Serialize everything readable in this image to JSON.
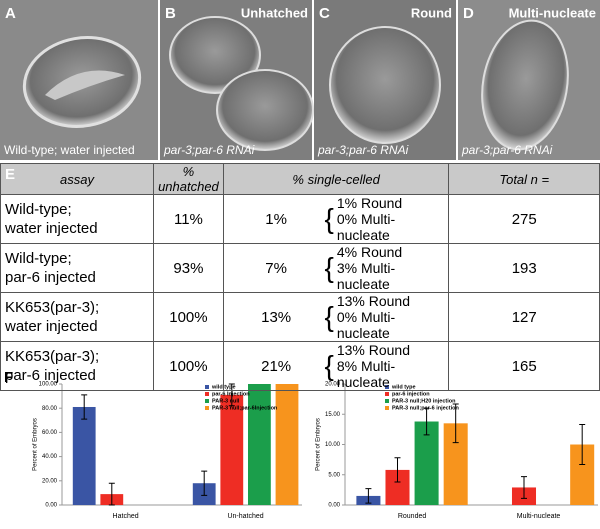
{
  "panels": [
    {
      "letter": "A",
      "caption": "Wild-type; water injected"
    },
    {
      "letter": "B",
      "title": "Unhatched",
      "caption": "par-3;par-6 RNAi"
    },
    {
      "letter": "C",
      "title": "Round",
      "caption": "par-3;par-6 RNAi"
    },
    {
      "letter": "D",
      "title": "Multi-nucleate",
      "caption": "par-3;par-6 RNAi"
    }
  ],
  "table": {
    "label": "E",
    "header": [
      "assay",
      "% unhatched",
      "% single-celled",
      "Total n ="
    ],
    "rows": [
      {
        "assay": [
          "Wild-type;",
          "water injected"
        ],
        "unhatched": "11%",
        "single": "1%",
        "breakdown": [
          "1% Round",
          "0% Multi-nucleate"
        ],
        "total": "275"
      },
      {
        "assay": [
          "Wild-type;",
          "par-6 injected"
        ],
        "unhatched": "93%",
        "single": "7%",
        "breakdown": [
          "4% Round",
          "3% Multi-nucleate"
        ],
        "total": "193"
      },
      {
        "assay": [
          "KK653(par-3);",
          "water injected"
        ],
        "unhatched": "100%",
        "single": "13%",
        "breakdown": [
          "13% Round",
          "0% Multi-nucleate"
        ],
        "total": "127"
      },
      {
        "assay": [
          "KK653(par-3);",
          "par-6 injected"
        ],
        "unhatched": "100%",
        "single": "21%",
        "breakdown": [
          "13% Round",
          "8% Multi-nucleate"
        ],
        "total": "165"
      }
    ]
  },
  "figure_label": "F",
  "chart_data": [
    {
      "type": "bar",
      "y_label": "Percent of Embryos",
      "categories": [
        "Hatched",
        "Un-hatched"
      ],
      "series": [
        {
          "name": "wild type",
          "color": "#3a55a4",
          "values": [
            81,
            18
          ],
          "errors": [
            10,
            10
          ]
        },
        {
          "name": "par-6 Injection",
          "color": "#ee2d24",
          "values": [
            9,
            91
          ],
          "errors": [
            9,
            9
          ]
        },
        {
          "name": "PAR-3 null",
          "color": "#1b9e4b",
          "values": [
            0,
            100
          ],
          "errors": [
            0,
            0
          ]
        },
        {
          "name": "PAR-3 null;par-6Injection",
          "color": "#f7941d",
          "values": [
            0,
            100
          ],
          "errors": [
            0,
            0
          ]
        }
      ],
      "ylim": [
        0,
        100
      ],
      "yticks": [
        {
          "value": 0,
          "label": "0.00"
        },
        {
          "value": 20,
          "label": "20.00"
        },
        {
          "value": 40,
          "label": "40.00"
        },
        {
          "value": 60,
          "label": "60.00"
        },
        {
          "value": 80,
          "label": "80.00"
        },
        {
          "value": 100,
          "label": "100.00"
        }
      ]
    },
    {
      "type": "bar",
      "y_label": "Percent of Embryos",
      "categories": [
        "Rounded",
        "Multi-nucleate"
      ],
      "series": [
        {
          "name": "wild type",
          "color": "#3a55a4",
          "values": [
            1.5,
            0
          ],
          "errors": [
            1.2,
            0
          ]
        },
        {
          "name": "par-6 injection",
          "color": "#ee2d24",
          "values": [
            5.8,
            2.9
          ],
          "errors": [
            2,
            1.8
          ]
        },
        {
          "name": "PAR-3 null;H20 injection",
          "color": "#1b9e4b",
          "values": [
            13.8,
            0
          ],
          "errors": [
            2.2,
            0
          ]
        },
        {
          "name": "PAR-3 null;par-6 injection",
          "color": "#f7941d",
          "values": [
            13.5,
            10
          ],
          "errors": [
            3.2,
            3.3
          ]
        }
      ],
      "ylim": [
        0,
        20
      ],
      "yticks": [
        {
          "value": 0,
          "label": "0.00"
        },
        {
          "value": 5,
          "label": "5.00"
        },
        {
          "value": 10,
          "label": "10.00"
        },
        {
          "value": 15,
          "label": "15.00"
        },
        {
          "value": 20,
          "label": "20.00"
        }
      ]
    }
  ]
}
